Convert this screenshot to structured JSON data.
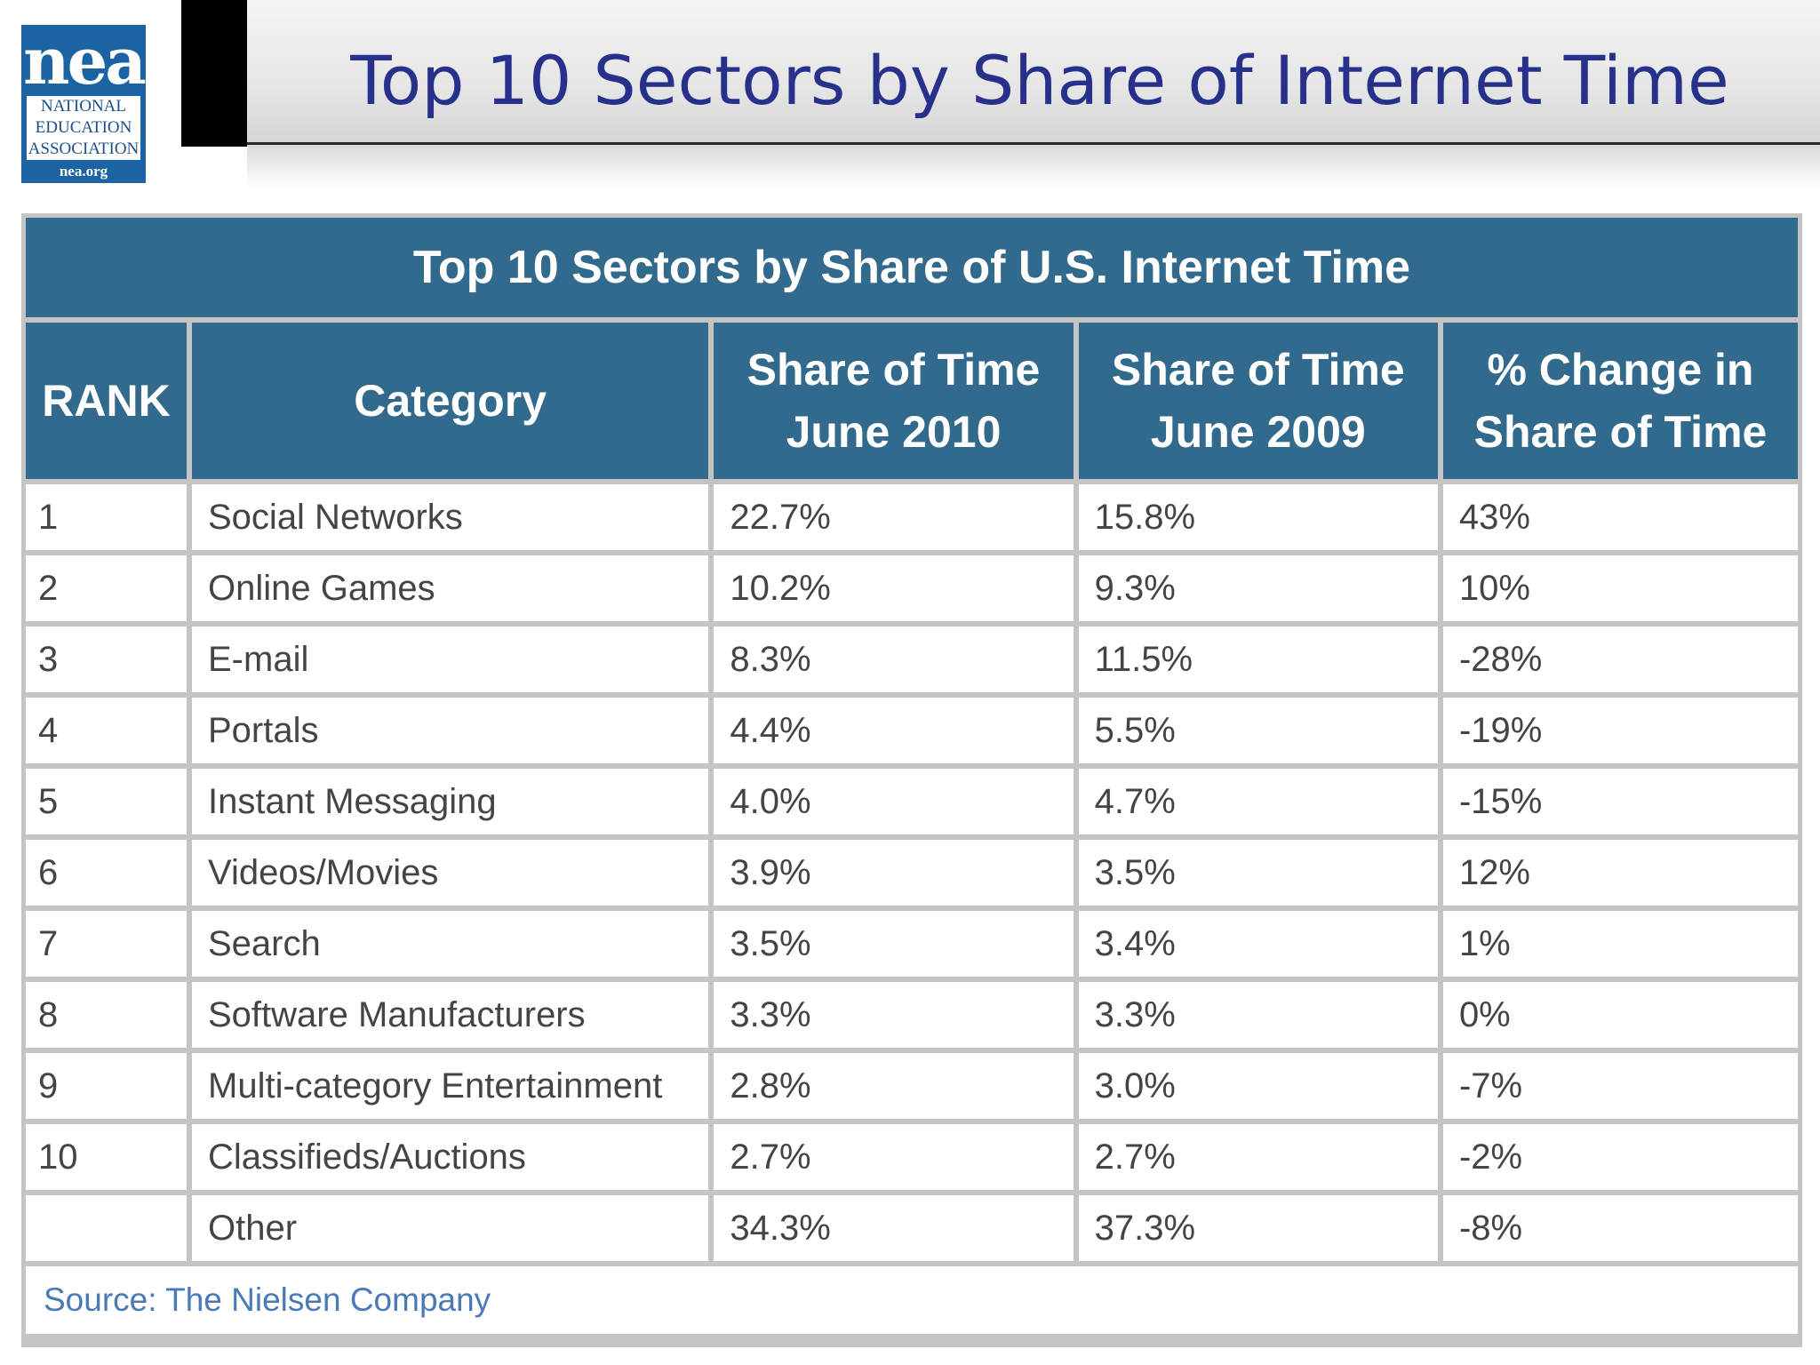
{
  "logo": {
    "mark": "nea",
    "org_lines": [
      "NATIONAL",
      "EDUCATION",
      "ASSOCIATION"
    ],
    "url": "nea.org"
  },
  "slide": {
    "title": "Top 10 Sectors by Share of Internet Time"
  },
  "table": {
    "caption": "Top 10 Sectors by Share of U.S. Internet Time",
    "columns": [
      {
        "lines": [
          "RANK"
        ]
      },
      {
        "lines": [
          "Category"
        ]
      },
      {
        "lines": [
          "Share of Time",
          "June 2010"
        ]
      },
      {
        "lines": [
          "Share of Time",
          "June 2009"
        ]
      },
      {
        "lines": [
          "% Change in",
          "Share of Time"
        ]
      }
    ],
    "rows": [
      {
        "rank": "1",
        "category": "Social Networks",
        "june2010": "22.7%",
        "june2009": "15.8%",
        "change": "43%"
      },
      {
        "rank": "2",
        "category": "Online Games",
        "june2010": "10.2%",
        "june2009": "9.3%",
        "change": "10%"
      },
      {
        "rank": "3",
        "category": "E-mail",
        "june2010": "8.3%",
        "june2009": "11.5%",
        "change": "-28%"
      },
      {
        "rank": "4",
        "category": "Portals",
        "june2010": "4.4%",
        "june2009": "5.5%",
        "change": "-19%"
      },
      {
        "rank": "5",
        "category": "Instant Messaging",
        "june2010": "4.0%",
        "june2009": "4.7%",
        "change": "-15%"
      },
      {
        "rank": "6",
        "category": "Videos/Movies",
        "june2010": "3.9%",
        "june2009": "3.5%",
        "change": "12%"
      },
      {
        "rank": "7",
        "category": "Search",
        "june2010": "3.5%",
        "june2009": "3.4%",
        "change": "1%"
      },
      {
        "rank": "8",
        "category": "Software Manufacturers",
        "june2010": "3.3%",
        "june2009": "3.3%",
        "change": "0%"
      },
      {
        "rank": "9",
        "category": "Multi-category Entertainment",
        "june2010": "2.8%",
        "june2009": "3.0%",
        "change": "-7%"
      },
      {
        "rank": "10",
        "category": "Classifieds/Auctions",
        "june2010": "2.7%",
        "june2009": "2.7%",
        "change": "-2%"
      },
      {
        "rank": "",
        "category": "Other",
        "june2010": "34.3%",
        "june2009": "37.3%",
        "change": "-8%"
      }
    ],
    "source": "Source: The Nielsen Company"
  },
  "colors": {
    "header_blue": "#316a8c",
    "title_blue": "#27308a",
    "source_blue": "#4a79b8",
    "logo_blue": "#1c63a4"
  }
}
